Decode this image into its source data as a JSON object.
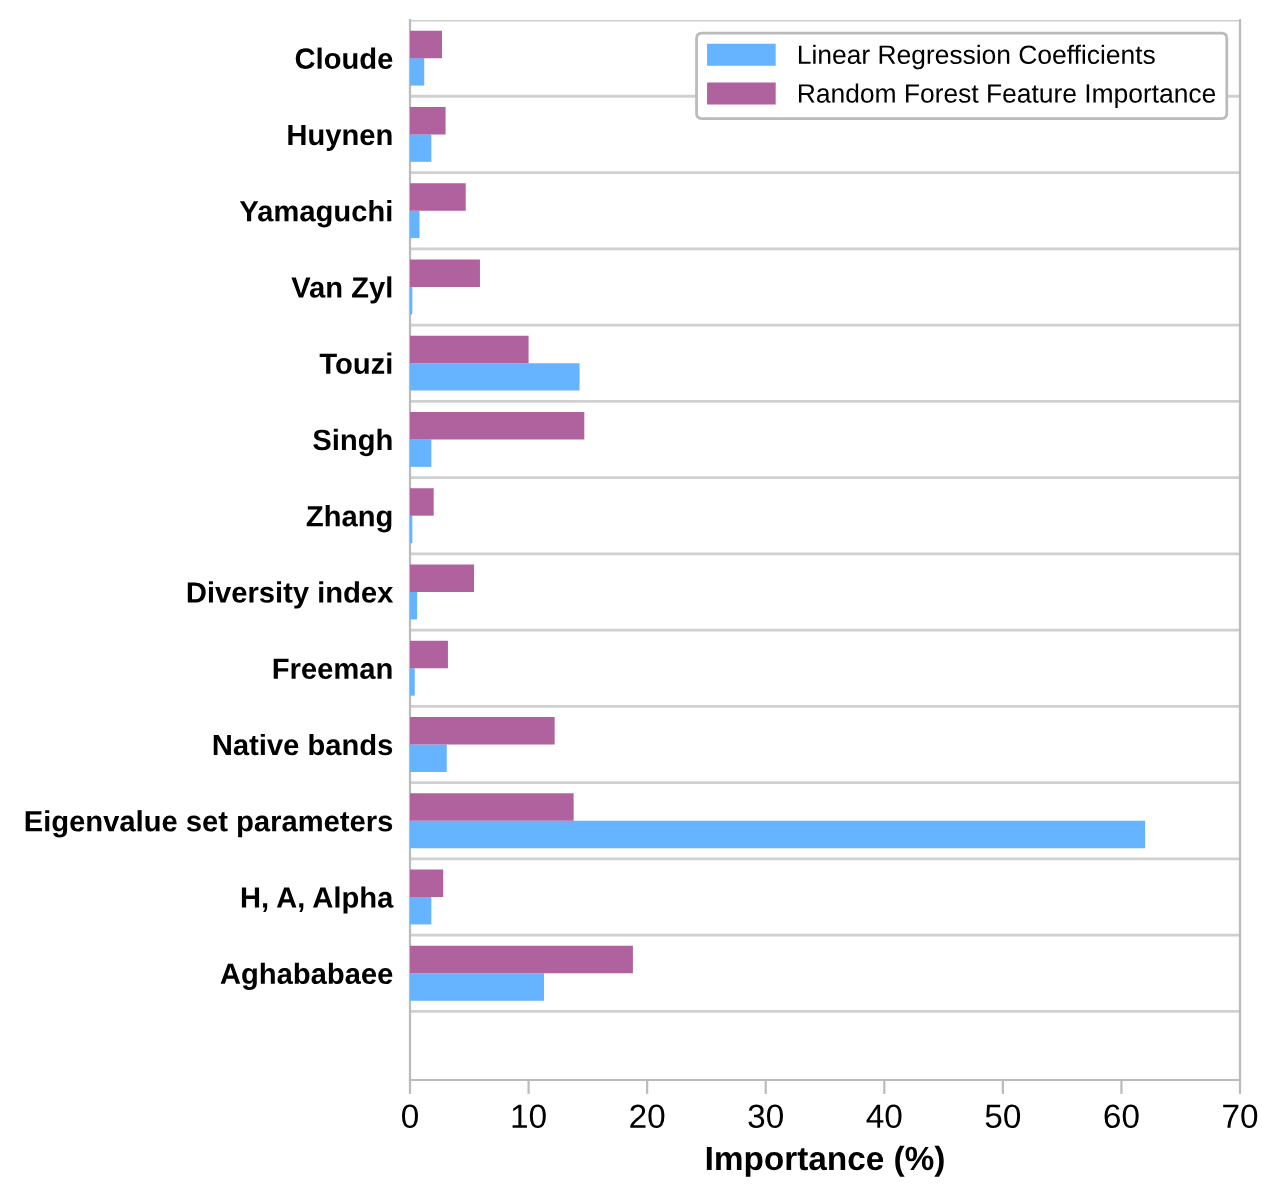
{
  "chart_data": {
    "type": "bar",
    "orientation": "horizontal",
    "xlabel": "Importance (%)",
    "categories": [
      "Cloude",
      "Huynen",
      "Yamaguchi",
      "Van Zyl",
      "Touzi",
      "Singh",
      "Zhang",
      "Diversity index",
      "Freeman",
      "Native bands",
      "Eigenvalue set parameters",
      "H, A, Alpha",
      "Aghababaee"
    ],
    "series": [
      {
        "name": "Linear Regression Coefficients",
        "color": "#66b3ff",
        "values": [
          1.2,
          1.8,
          0.8,
          0.2,
          14.3,
          1.8,
          0.2,
          0.6,
          0.4,
          3.1,
          62,
          1.8,
          11.3
        ]
      },
      {
        "name": "Random Forest Feature Importance",
        "color": "#b0629f",
        "values": [
          2.7,
          3.0,
          4.7,
          5.9,
          10.0,
          14.7,
          2.0,
          5.4,
          3.2,
          12.2,
          13.8,
          2.8,
          18.8
        ]
      }
    ],
    "xlim": [
      0,
      70
    ],
    "xticks": [
      0,
      10,
      20,
      30,
      40,
      50,
      60,
      70
    ],
    "grid": "y",
    "legend": "top right"
  }
}
